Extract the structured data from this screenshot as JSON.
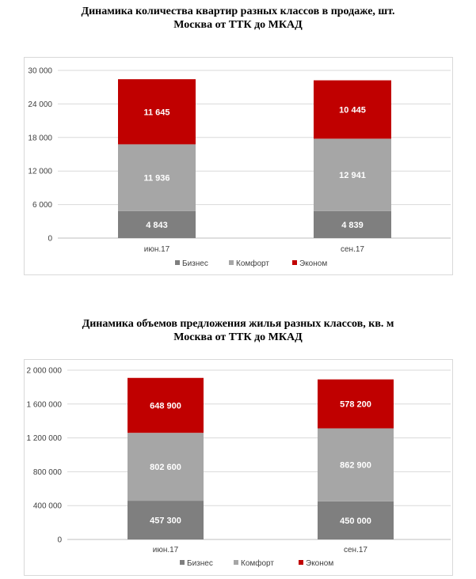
{
  "chart_data": [
    {
      "type": "bar",
      "stacked": true,
      "title_line1": "Динамика количества квартир разных классов в продаже, шт.",
      "title_line2": "Москва от ТТК до МКАД",
      "categories": [
        "июн.17",
        "сен.17"
      ],
      "series": [
        {
          "name": "Бизнес",
          "color": "#7f7f7f",
          "values": [
            4843,
            4839
          ],
          "labels": [
            "4 843",
            "4 839"
          ]
        },
        {
          "name": "Комфорт",
          "color": "#a6a6a6",
          "values": [
            11936,
            12941
          ],
          "labels": [
            "11 936",
            "12 941"
          ]
        },
        {
          "name": "Эконом",
          "color": "#c00000",
          "values": [
            11645,
            10445
          ],
          "labels": [
            "11 645",
            "10 445"
          ]
        }
      ],
      "ylim": [
        0,
        30000
      ],
      "yticks": [
        0,
        6000,
        12000,
        18000,
        24000,
        30000
      ],
      "ytick_labels": [
        "0",
        "6 000",
        "12 000",
        "18 000",
        "24 000",
        "30 000"
      ],
      "grid": true,
      "legend_position": "bottom"
    },
    {
      "type": "bar",
      "stacked": true,
      "title_line1": "Динамика объемов предложения жилья разных классов, кв. м",
      "title_line2": "Москва от ТТК до МКАД",
      "categories": [
        "июн.17",
        "сен.17"
      ],
      "series": [
        {
          "name": "Бизнес",
          "color": "#7f7f7f",
          "values": [
            457300,
            450000
          ],
          "labels": [
            "457 300",
            "450 000"
          ]
        },
        {
          "name": "Комфорт",
          "color": "#a6a6a6",
          "values": [
            802600,
            862900
          ],
          "labels": [
            "802 600",
            "862 900"
          ]
        },
        {
          "name": "Эконом",
          "color": "#c00000",
          "values": [
            648900,
            578200
          ],
          "labels": [
            "648 900",
            "578 200"
          ]
        }
      ],
      "ylim": [
        0,
        2000000
      ],
      "yticks": [
        0,
        400000,
        800000,
        1200000,
        1600000,
        2000000
      ],
      "ytick_labels": [
        "0",
        "400 000",
        "800 000",
        "1 200 000",
        "1 600 000",
        "2 000 000"
      ],
      "grid": true,
      "legend_position": "bottom"
    }
  ]
}
